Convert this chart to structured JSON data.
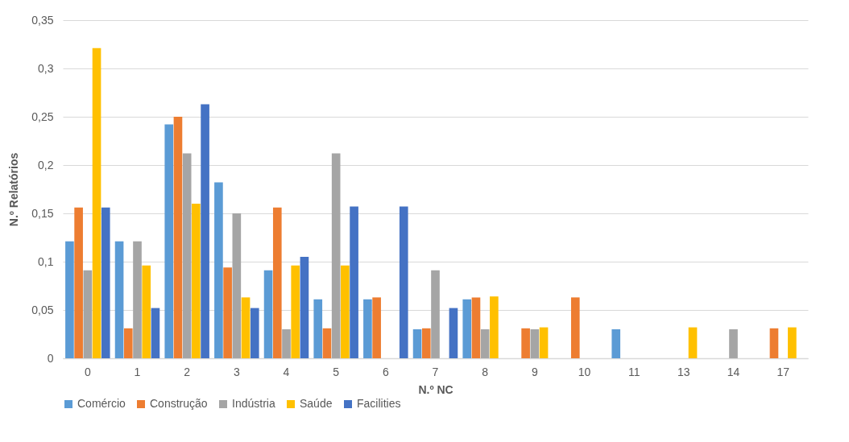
{
  "chart_data": {
    "type": "bar",
    "xlabel": "N.º NC",
    "ylabel": "N.º Relatórios",
    "categories": [
      "0",
      "1",
      "2",
      "3",
      "4",
      "5",
      "6",
      "7",
      "8",
      "9",
      "10",
      "11",
      "13",
      "14",
      "17"
    ],
    "series": [
      {
        "name": "Comércio",
        "color": "#5b9bd5",
        "values": [
          0.121,
          0.121,
          0.242,
          0.182,
          0.091,
          0.061,
          0.061,
          0.03,
          0.061,
          0,
          0,
          0.03,
          0,
          0,
          0
        ]
      },
      {
        "name": "Construção",
        "color": "#ed7d31",
        "values": [
          0.156,
          0.031,
          0.25,
          0.094,
          0.156,
          0.031,
          0.063,
          0.031,
          0.063,
          0.031,
          0.063,
          0,
          0,
          0,
          0.031
        ]
      },
      {
        "name": "Indústria",
        "color": "#a5a5a5",
        "values": [
          0.091,
          0.121,
          0.212,
          0.15,
          0.03,
          0.212,
          0,
          0.091,
          0.03,
          0.03,
          0,
          0,
          0,
          0.03,
          0
        ]
      },
      {
        "name": "Saúde",
        "color": "#ffc000",
        "values": [
          0.321,
          0.096,
          0.16,
          0.063,
          0.096,
          0.096,
          0,
          0,
          0.064,
          0.032,
          0,
          0,
          0.032,
          0,
          0.032
        ]
      },
      {
        "name": "Facilities",
        "color": "#4472c4",
        "values": [
          0.156,
          0.052,
          0.263,
          0.052,
          0.105,
          0.157,
          0.157,
          0.052,
          0,
          0,
          0,
          0,
          0,
          0,
          0
        ]
      }
    ],
    "ylim": [
      0,
      0.35
    ],
    "yticks": [
      0,
      {
        "value": 0.05,
        "label": "0,05"
      },
      {
        "value": 0.1,
        "label": "0,1"
      },
      {
        "value": 0.15,
        "label": "0,15"
      },
      {
        "value": 0.2,
        "label": "0,2"
      },
      {
        "value": 0.25,
        "label": "0,25"
      },
      {
        "value": 0.3,
        "label": "0,3"
      },
      {
        "value": 0.35,
        "label": "0,35"
      }
    ],
    "grid": "y",
    "legend": "bottom"
  }
}
